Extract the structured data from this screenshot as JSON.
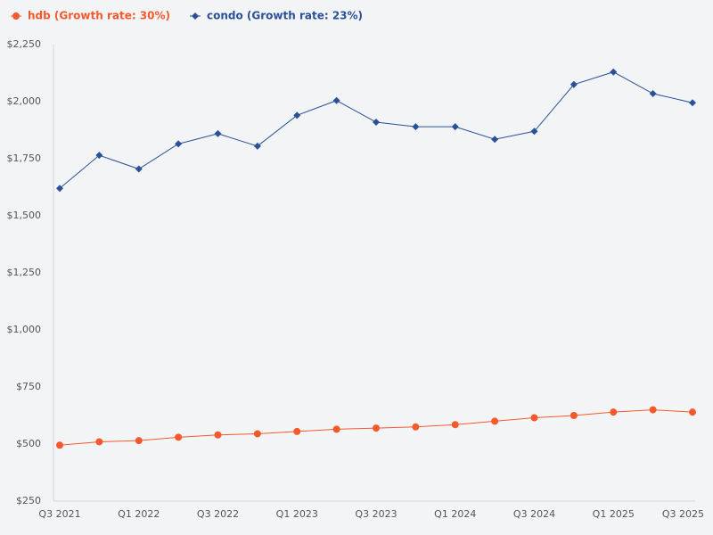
{
  "chart_data": {
    "type": "line",
    "categories": [
      "Q3 2021",
      null,
      "Q1 2022",
      null,
      "Q3 2022",
      null,
      "Q1 2023",
      null,
      "Q3 2023",
      null,
      "Q1 2024",
      null,
      "Q3 2024",
      null,
      "Q1 2025",
      null,
      "Q3 2025"
    ],
    "series": [
      {
        "name": "hdb (Growth rate: 30%)",
        "color": "#f4592b",
        "marker": "circle",
        "values": [
          495,
          510,
          515,
          530,
          540,
          545,
          555,
          565,
          570,
          575,
          585,
          600,
          615,
          625,
          640,
          650,
          640
        ]
      },
      {
        "name": "condo (Growth rate: 23%)",
        "color": "#2a5198",
        "marker": "diamond",
        "values": [
          1620,
          1765,
          1705,
          1815,
          1860,
          1805,
          1940,
          2005,
          1910,
          1890,
          1890,
          1835,
          1870,
          2075,
          2130,
          2035,
          1995
        ]
      }
    ],
    "ylim": [
      250,
      2250
    ],
    "yticks": [
      {
        "value": 250,
        "label": "$250"
      },
      {
        "value": 500,
        "label": "$500"
      },
      {
        "value": 750,
        "label": "$750"
      },
      {
        "value": 1000,
        "label": "$1,000"
      },
      {
        "value": 1250,
        "label": "$1,250"
      },
      {
        "value": 1500,
        "label": "$1,500"
      },
      {
        "value": 1750,
        "label": "$1,750"
      },
      {
        "value": 2000,
        "label": "$2,000"
      },
      {
        "value": 2250,
        "label": "$2,250"
      }
    ],
    "grid": false,
    "legend": "top-left"
  }
}
